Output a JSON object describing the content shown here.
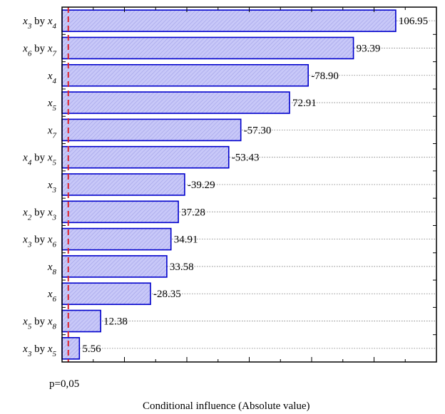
{
  "chart_data": {
    "type": "bar",
    "orientation": "horizontal",
    "categories": [
      {
        "parts": [
          {
            "t": "x",
            "i": true
          },
          {
            "t": "3",
            "sub": true,
            "i": true
          },
          {
            "t": " by "
          },
          {
            "t": "x",
            "i": true
          },
          {
            "t": "4",
            "sub": true,
            "i": true
          }
        ]
      },
      {
        "parts": [
          {
            "t": "x",
            "i": true
          },
          {
            "t": "6",
            "sub": true,
            "i": true
          },
          {
            "t": " by "
          },
          {
            "t": "x",
            "i": true
          },
          {
            "t": "7",
            "sub": true,
            "i": true
          }
        ]
      },
      {
        "parts": [
          {
            "t": "x",
            "i": true
          },
          {
            "t": "4",
            "sub": true,
            "i": true
          }
        ]
      },
      {
        "parts": [
          {
            "t": "x",
            "i": true
          },
          {
            "t": "5",
            "sub": true,
            "i": true
          }
        ]
      },
      {
        "parts": [
          {
            "t": "x",
            "i": true
          },
          {
            "t": "7",
            "sub": true,
            "i": true
          }
        ]
      },
      {
        "parts": [
          {
            "t": "x",
            "i": true
          },
          {
            "t": "4",
            "sub": true,
            "i": true
          },
          {
            "t": " by "
          },
          {
            "t": "x",
            "i": true
          },
          {
            "t": "5",
            "sub": true,
            "i": true
          }
        ]
      },
      {
        "parts": [
          {
            "t": "x",
            "i": true
          },
          {
            "t": "3",
            "sub": true,
            "i": true
          }
        ]
      },
      {
        "parts": [
          {
            "t": "x",
            "i": true
          },
          {
            "t": "2",
            "sub": true,
            "i": true
          },
          {
            "t": " by "
          },
          {
            "t": "x",
            "i": true
          },
          {
            "t": "3",
            "sub": true,
            "i": true
          }
        ]
      },
      {
        "parts": [
          {
            "t": "x",
            "i": true
          },
          {
            "t": "3",
            "sub": true,
            "i": true
          },
          {
            "t": " by "
          },
          {
            "t": "x",
            "i": true
          },
          {
            "t": "6",
            "sub": true,
            "i": true
          }
        ]
      },
      {
        "parts": [
          {
            "t": "x",
            "i": true
          },
          {
            "t": "8",
            "sub": true,
            "i": true
          }
        ]
      },
      {
        "parts": [
          {
            "t": "x",
            "i": true
          },
          {
            "t": "6",
            "sub": true,
            "i": true
          }
        ]
      },
      {
        "parts": [
          {
            "t": "x",
            "i": true
          },
          {
            "t": "5",
            "sub": true,
            "i": true
          },
          {
            "t": " by "
          },
          {
            "t": "x",
            "i": true
          },
          {
            "t": "8",
            "sub": true,
            "i": true
          }
        ]
      },
      {
        "parts": [
          {
            "t": "x",
            "i": true
          },
          {
            "t": "3",
            "sub": true,
            "i": true
          },
          {
            "t": " by "
          },
          {
            "t": "x",
            "i": true
          },
          {
            "t": "5",
            "sub": true,
            "i": true
          }
        ]
      }
    ],
    "values": [
      106.95,
      93.39,
      78.9,
      72.91,
      57.3,
      53.43,
      39.29,
      37.28,
      34.91,
      33.58,
      28.35,
      12.38,
      5.56
    ],
    "value_labels": [
      "106.95",
      "93.39",
      "-78.90",
      "72.91",
      "-57.30",
      "-53.43",
      "-39.29",
      "37.28",
      "34.91",
      "33.58",
      "-28.35",
      "12.38",
      "5.56"
    ],
    "threshold": {
      "value": 2.0,
      "label": "p=0,05"
    },
    "xlabel": "Conditional influence (Absolute value)",
    "xlim": [
      0,
      120
    ],
    "major_tick_step": 20,
    "grid": "horizontal dotted",
    "bar_fill": "#c8c8f8",
    "bar_hatch": "#a0a0e8",
    "bar_stroke": "#0000cc",
    "threshold_color": "#e0202a"
  }
}
